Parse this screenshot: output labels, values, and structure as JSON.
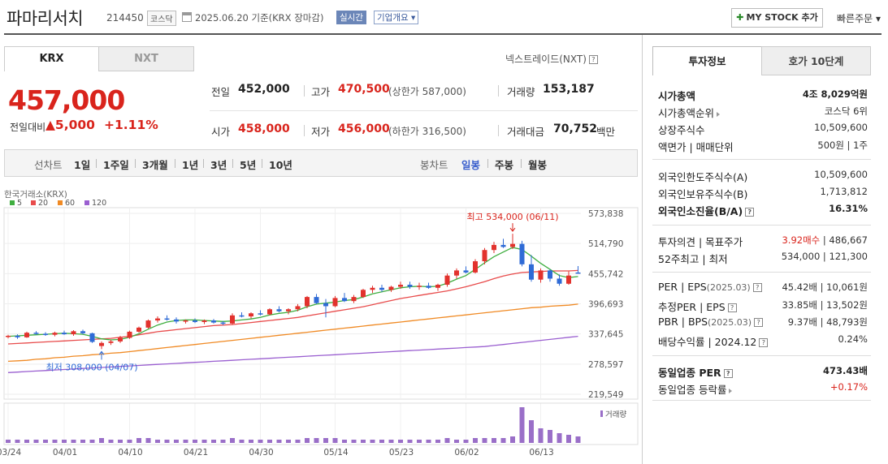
{
  "header": {
    "name": "파마리서치",
    "code": "214450",
    "market": "코스닥",
    "date": "2025.06.20 기준(KRX 장마감)",
    "realtime": "실시간",
    "overview": "기업개요 ▾",
    "mystock": "MY STOCK 추가",
    "quick": "빠른주문 ▾"
  },
  "tabs": {
    "krx": "KRX",
    "nxt": "NXT"
  },
  "nxt_link": "넥스트레이드(NXT)",
  "quote": {
    "price": "457,000",
    "change_label": "전일대비",
    "change": "▲5,000",
    "change_pct": "+1.11%",
    "prev_label": "전일",
    "prev": "452,000",
    "high_label": "고가",
    "high": "470,500",
    "upper_limit": "(상한가 587,000)",
    "volume_label": "거래량",
    "volume": "153,187",
    "open_label": "시가",
    "open": "458,000",
    "low_label": "저가",
    "low": "456,000",
    "lower_limit": "(하한가 316,500)",
    "amount_label": "거래대금",
    "amount": "70,752",
    "amount_unit": "백만"
  },
  "chart_controls": {
    "line_chart": "선차트",
    "periods": [
      "1일",
      "1주일",
      "3개월",
      "1년",
      "3년",
      "5년",
      "10년"
    ],
    "candle_chart": "봉차트",
    "candle_periods": [
      "일봉",
      "주봉",
      "월봉"
    ]
  },
  "chart_data": {
    "type": "candlestick",
    "source_label": "한국거래소(KRX)",
    "legend": [
      {
        "name": "5",
        "color": "#3fae3f"
      },
      {
        "name": "20",
        "color": "#e84b4b"
      },
      {
        "name": "60",
        "color": "#f08a24"
      },
      {
        "name": "120",
        "color": "#9a5fd0"
      }
    ],
    "y_ticks": [
      "573,838",
      "514,790",
      "455,742",
      "396,693",
      "337,645",
      "278,597",
      "219,549"
    ],
    "y_tick_values": [
      573838,
      514790,
      455742,
      396693,
      337645,
      278597,
      219549
    ],
    "x_ticks": [
      "03/24",
      "04/01",
      "04/10",
      "04/21",
      "04/30",
      "05/14",
      "05/23",
      "06/02",
      "06/13"
    ],
    "x_tick_index": [
      0,
      6,
      13,
      20,
      27,
      35,
      42,
      49,
      57
    ],
    "max_label": "최고 534,000 (06/11)",
    "min_label": "최저 308,000 (04/07)",
    "volume_label": "거래량",
    "candles": [
      [
        332000,
        336000,
        329000,
        334000
      ],
      [
        334000,
        337000,
        328000,
        331000
      ],
      [
        331000,
        342000,
        330000,
        340000
      ],
      [
        340000,
        343000,
        336000,
        338000
      ],
      [
        338000,
        341000,
        334000,
        336000
      ],
      [
        336000,
        342000,
        333000,
        340000
      ],
      [
        340000,
        344000,
        336000,
        337000
      ],
      [
        337000,
        345000,
        334000,
        343000
      ],
      [
        343000,
        346000,
        337000,
        339000
      ],
      [
        339000,
        340000,
        320000,
        322000
      ],
      [
        314000,
        323000,
        308000,
        320000
      ],
      [
        320000,
        326000,
        316000,
        323000
      ],
      [
        323000,
        334000,
        320000,
        330000
      ],
      [
        330000,
        344000,
        328000,
        342000
      ],
      [
        342000,
        352000,
        340000,
        350000
      ],
      [
        350000,
        366000,
        348000,
        364000
      ],
      [
        364000,
        372000,
        360000,
        368000
      ],
      [
        368000,
        374000,
        364000,
        366000
      ],
      [
        366000,
        370000,
        358000,
        362000
      ],
      [
        362000,
        366000,
        358000,
        364000
      ],
      [
        364000,
        368000,
        359000,
        361000
      ],
      [
        361000,
        366000,
        357000,
        364000
      ],
      [
        364000,
        367000,
        358000,
        360000
      ],
      [
        360000,
        363000,
        355000,
        358000
      ],
      [
        358000,
        378000,
        356000,
        374000
      ],
      [
        374000,
        380000,
        370000,
        372000
      ],
      [
        372000,
        380000,
        368000,
        378000
      ],
      [
        378000,
        384000,
        374000,
        376000
      ],
      [
        376000,
        388000,
        374000,
        386000
      ],
      [
        386000,
        392000,
        380000,
        382000
      ],
      [
        382000,
        388000,
        376000,
        386000
      ],
      [
        386000,
        396000,
        382000,
        392000
      ],
      [
        392000,
        412000,
        388000,
        410000
      ],
      [
        410000,
        416000,
        396000,
        398000
      ],
      [
        398000,
        406000,
        370000,
        392000
      ],
      [
        392000,
        412000,
        390000,
        408000
      ],
      [
        408000,
        418000,
        400000,
        402000
      ],
      [
        402000,
        414000,
        398000,
        410000
      ],
      [
        410000,
        426000,
        408000,
        424000
      ],
      [
        424000,
        432000,
        418000,
        428000
      ],
      [
        428000,
        434000,
        420000,
        424000
      ],
      [
        424000,
        432000,
        420000,
        430000
      ],
      [
        430000,
        440000,
        426000,
        434000
      ],
      [
        434000,
        440000,
        426000,
        430000
      ],
      [
        430000,
        438000,
        424000,
        432000
      ],
      [
        432000,
        438000,
        426000,
        428000
      ],
      [
        428000,
        436000,
        422000,
        434000
      ],
      [
        434000,
        456000,
        430000,
        452000
      ],
      [
        452000,
        466000,
        446000,
        462000
      ],
      [
        462000,
        470000,
        456000,
        458000
      ],
      [
        458000,
        484000,
        456000,
        480000
      ],
      [
        480000,
        506000,
        474000,
        502000
      ],
      [
        502000,
        518000,
        496000,
        512000
      ],
      [
        512000,
        524000,
        506000,
        508000
      ],
      [
        508000,
        534000,
        504000,
        514000
      ],
      [
        514000,
        520000,
        470000,
        474000
      ],
      [
        474000,
        492000,
        440000,
        444000
      ],
      [
        444000,
        466000,
        438000,
        462000
      ],
      [
        462000,
        464000,
        440000,
        446000
      ],
      [
        446000,
        454000,
        432000,
        436000
      ],
      [
        436000,
        460000,
        434000,
        452000
      ],
      [
        458000,
        470500,
        456000,
        457000
      ]
    ],
    "ma5": [
      333000,
      334000,
      335000,
      336000,
      337000,
      338000,
      339000,
      338000,
      337000,
      333000,
      328000,
      326000,
      327000,
      331000,
      338000,
      347000,
      355000,
      361000,
      364000,
      365000,
      365000,
      364000,
      363000,
      362000,
      363000,
      365000,
      367000,
      370000,
      375000,
      378000,
      380000,
      384000,
      391000,
      396000,
      398000,
      400000,
      403000,
      405000,
      410000,
      416000,
      420000,
      424000,
      428000,
      430000,
      431000,
      430000,
      431000,
      437000,
      445000,
      452000,
      464000,
      477000,
      489000,
      498000,
      507000,
      503000,
      490000,
      476000,
      464000,
      452000,
      448000,
      450000
    ],
    "ma20": [
      318000,
      319000,
      320000,
      321000,
      322000,
      323000,
      324000,
      325000,
      326000,
      327000,
      328000,
      329000,
      331000,
      333000,
      336000,
      339000,
      342000,
      344000,
      346000,
      348000,
      350000,
      352000,
      354000,
      355000,
      356000,
      358000,
      360000,
      362000,
      364000,
      366000,
      368000,
      370000,
      373000,
      376000,
      379000,
      382000,
      385000,
      388000,
      391000,
      395000,
      399000,
      403000,
      407000,
      410000,
      413000,
      416000,
      419000,
      422000,
      426000,
      430000,
      435000,
      440000,
      446000,
      451000,
      455000,
      458000,
      459000,
      460000,
      461000,
      461000,
      461000,
      462000
    ],
    "ma60": [
      284000,
      285000,
      286000,
      288000,
      289000,
      291000,
      292000,
      294000,
      295000,
      297000,
      298000,
      300000,
      301000,
      303000,
      305000,
      307000,
      309000,
      311000,
      313000,
      315000,
      317000,
      319000,
      321000,
      323000,
      325000,
      327000,
      329000,
      331000,
      333000,
      335000,
      337000,
      339000,
      341000,
      343000,
      345000,
      347000,
      349000,
      351000,
      353000,
      355000,
      357000,
      359000,
      361000,
      363000,
      365000,
      367000,
      369000,
      371000,
      373000,
      375000,
      377000,
      379000,
      381000,
      383000,
      385000,
      387000,
      389000,
      390000,
      392000,
      393000,
      394000,
      396000
    ],
    "ma120": [
      262000,
      263000,
      264000,
      265000,
      266000,
      267000,
      268000,
      269000,
      270000,
      271000,
      272000,
      273000,
      274000,
      275000,
      276000,
      277000,
      278000,
      279000,
      280000,
      281000,
      282000,
      283000,
      284000,
      285000,
      286000,
      287000,
      288000,
      289000,
      290000,
      291000,
      292000,
      293000,
      294000,
      295000,
      296000,
      297000,
      298000,
      299000,
      300000,
      301000,
      302000,
      303000,
      304000,
      305000,
      306000,
      307000,
      308000,
      309000,
      310000,
      311000,
      312000,
      313000,
      315000,
      317000,
      319000,
      321000,
      323000,
      325000,
      327000,
      329000,
      331000,
      333000
    ],
    "volumes": [
      2,
      2,
      2,
      2,
      2,
      2,
      2,
      2,
      2,
      2,
      3,
      2,
      2,
      2,
      3,
      3,
      2,
      2,
      2,
      2,
      2,
      2,
      2,
      2,
      3,
      2,
      2,
      2,
      2,
      2,
      2,
      2,
      3,
      3,
      3,
      3,
      2,
      2,
      2,
      2,
      2,
      2,
      2,
      2,
      2,
      2,
      2,
      3,
      2,
      2,
      3,
      3,
      3,
      3,
      4,
      22,
      14,
      9,
      8,
      6,
      5,
      4
    ]
  },
  "invest_tabs": {
    "info": "투자정보",
    "hoga": "호가 10단계"
  },
  "invest_info": {
    "market_cap_label": "시가총액",
    "market_cap": "4조 8,029억원",
    "rank_label": "시가총액순위",
    "rank": "코스닥 6위",
    "shares_label": "상장주식수",
    "shares": "10,509,600",
    "par_label": "액면가 | 매매단위",
    "par": "500원 | 1주",
    "foreign_limit_label": "외국인한도주식수(A)",
    "foreign_limit": "10,509,600",
    "foreign_hold_label": "외국인보유주식수(B)",
    "foreign_hold": "1,713,812",
    "foreign_ratio_label": "외국인소진율(B/A)",
    "foreign_ratio": "16.31%",
    "opinion_label": "투자의견 | 목표주가",
    "opinion": "3.92매수",
    "target": "| 486,667",
    "week52_label": "52주최고 | 최저",
    "week52": "534,000 | 121,300",
    "per_label": "PER | EPS",
    "per_year": "(2025.03)",
    "per": "45.42배 | 10,061원",
    "est_per_label": "추정PER | EPS",
    "est_per": "33.85배 | 13,502원",
    "pbr_label": "PBR | BPS",
    "pbr_year": "(2025.03)",
    "pbr": "9.37배 | 48,793원",
    "div_label": "배당수익률 | 2024.12",
    "div": "0.24%",
    "sector_per_label": "동일업종 PER",
    "sector_per": "473.43배",
    "sector_rate_label": "동일업종 등락률",
    "sector_rate": "+0.17%"
  }
}
